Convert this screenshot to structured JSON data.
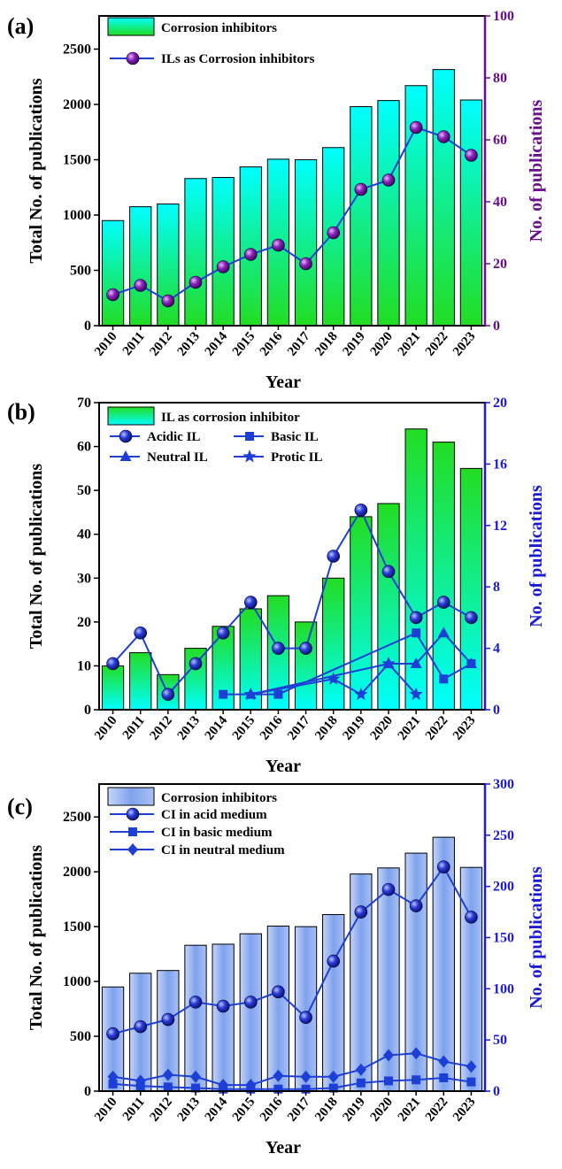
{
  "colors": {
    "black": "#000000",
    "purple": "#6a0d91",
    "blue": "#1a1ad8",
    "line_blue": "#1d3fd6",
    "cyan": "#00ffff",
    "green": "#22dd22",
    "bar_c_top": "#7aa0f0",
    "bar_c_bottom": "#b8ccf5"
  },
  "chart_data": [
    {
      "panel_label": "(a)",
      "type": "bar",
      "categories": [
        "2010",
        "2011",
        "2012",
        "2013",
        "2014",
        "2015",
        "2016",
        "2017",
        "2018",
        "2019",
        "2020",
        "2021",
        "2022",
        "2023"
      ],
      "xlabel": "Year",
      "ylabel": "Total  No. of publications",
      "ylabel2": "No. of publications",
      "ylim": [
        0,
        2800
      ],
      "yticks": [
        0,
        500,
        1000,
        1500,
        2000,
        2500
      ],
      "ylim2": [
        0,
        100
      ],
      "yticks2": [
        0,
        20,
        40,
        60,
        80,
        100
      ],
      "legend_position": "top-left",
      "series": [
        {
          "name": "Corrosion inhibitors",
          "type": "bar",
          "axis": "left",
          "values": [
            950,
            1075,
            1100,
            1330,
            1340,
            1435,
            1505,
            1500,
            1610,
            1980,
            2035,
            2170,
            2315,
            2040
          ]
        },
        {
          "name": "ILs as Corrosion inhibitors",
          "type": "line",
          "marker": "sphere",
          "axis": "right",
          "values": [
            10,
            13,
            8,
            14,
            19,
            23,
            26,
            20,
            30,
            44,
            47,
            64,
            61,
            55
          ]
        }
      ]
    },
    {
      "panel_label": "(b)",
      "type": "bar",
      "categories": [
        "2010",
        "2011",
        "2012",
        "2013",
        "2014",
        "2015",
        "2016",
        "2017",
        "2018",
        "2019",
        "2020",
        "2021",
        "2022",
        "2023"
      ],
      "xlabel": "Year",
      "ylabel": "Total  No. of publications",
      "ylabel2": "No. of publications",
      "ylim": [
        0,
        70
      ],
      "yticks": [
        0,
        10,
        20,
        30,
        40,
        50,
        60,
        70
      ],
      "ylim2": [
        0,
        20
      ],
      "yticks2": [
        0,
        4,
        8,
        12,
        16,
        20
      ],
      "legend_position": "top-left",
      "series": [
        {
          "name": "IL as corrosion inhibitor",
          "type": "bar",
          "axis": "left",
          "values": [
            10,
            13,
            8,
            14,
            19,
            23,
            26,
            20,
            30,
            44,
            47,
            64,
            61,
            55
          ]
        },
        {
          "name": "Acidic IL",
          "type": "line",
          "marker": "sphere",
          "axis": "right",
          "x": [
            "2010",
            "2011",
            "2012",
            "2013",
            "2014",
            "2015",
            "2016",
            "2017",
            "2018",
            "2019",
            "2020",
            "2021",
            "2022",
            "2023"
          ],
          "values": [
            3,
            5,
            1,
            3,
            5,
            7,
            4,
            4,
            10,
            13,
            9,
            6,
            7,
            6
          ]
        },
        {
          "name": "Basic IL",
          "type": "line",
          "marker": "square",
          "axis": "right",
          "x": [
            "2014",
            "2016",
            "2021",
            "2022",
            "2023"
          ],
          "values": [
            1,
            1,
            5,
            2,
            3
          ]
        },
        {
          "name": "Neutral IL",
          "type": "line",
          "marker": "triangle",
          "axis": "right",
          "x": [
            "2015",
            "2020",
            "2021",
            "2022",
            "2023"
          ],
          "values": [
            1,
            3,
            3,
            5,
            3
          ]
        },
        {
          "name": "Protic IL",
          "type": "line",
          "marker": "star",
          "axis": "right",
          "x": [
            "2015",
            "2018",
            "2019",
            "2020",
            "2021"
          ],
          "values": [
            1,
            2,
            1,
            3,
            1
          ]
        }
      ]
    },
    {
      "panel_label": "(c)",
      "type": "bar",
      "categories": [
        "2010",
        "2011",
        "2012",
        "2013",
        "2014",
        "2015",
        "2016",
        "2017",
        "2018",
        "2019",
        "2020",
        "2021",
        "2022",
        "2023"
      ],
      "xlabel": "Year",
      "ylabel": "Total  No. of publications",
      "ylabel2": "No. of publications",
      "ylim": [
        0,
        2800
      ],
      "yticks": [
        0,
        500,
        1000,
        1500,
        2000,
        2500
      ],
      "ylim2": [
        0,
        300
      ],
      "yticks2": [
        0,
        50,
        100,
        150,
        200,
        250,
        300
      ],
      "legend_position": "top-left",
      "series": [
        {
          "name": "Corrosion inhibitors",
          "type": "bar",
          "axis": "left",
          "values": [
            950,
            1075,
            1100,
            1330,
            1340,
            1435,
            1505,
            1500,
            1610,
            1980,
            2035,
            2170,
            2315,
            2040
          ]
        },
        {
          "name": "CI in acid medium",
          "type": "line",
          "marker": "sphere",
          "axis": "right",
          "values": [
            56,
            63,
            70,
            87,
            83,
            87,
            97,
            72,
            127,
            175,
            197,
            181,
            219,
            170
          ]
        },
        {
          "name": "CI in basic medium",
          "type": "line",
          "marker": "square",
          "axis": "right",
          "values": [
            7,
            5,
            4,
            3,
            2,
            2,
            2,
            2,
            3,
            8,
            10,
            11,
            13,
            9
          ]
        },
        {
          "name": "CI in neutral medium",
          "type": "line",
          "marker": "diamond",
          "axis": "right",
          "values": [
            14,
            10,
            16,
            14,
            6,
            6,
            15,
            14,
            14,
            21,
            35,
            37,
            29,
            24
          ]
        }
      ]
    }
  ]
}
